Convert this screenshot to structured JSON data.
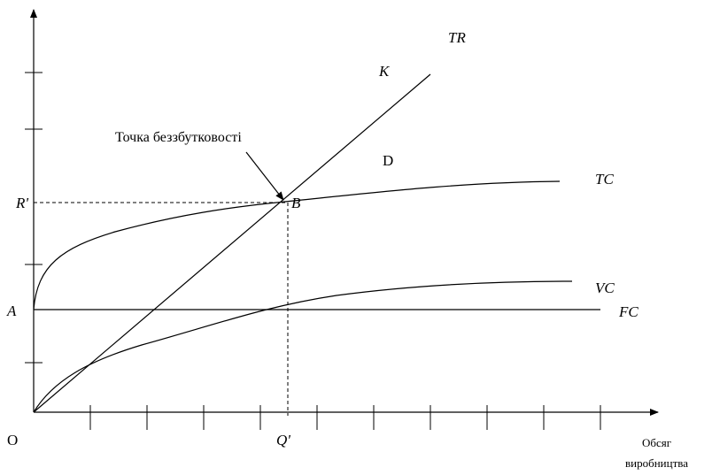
{
  "labels": {
    "origin": "O",
    "tr": "TR",
    "k": "K",
    "tc": "TC",
    "vc": "VC",
    "fc": "FC",
    "a": "A",
    "r_prime": "R'",
    "b": "B",
    "d": "D",
    "q_prime": "Q'",
    "x_axis_line1": "Обсяг",
    "x_axis_line2": "виробництва",
    "annotation": "Точка беззбутковості"
  },
  "colors": {
    "ink": "#000000",
    "background": "#ffffff"
  }
}
